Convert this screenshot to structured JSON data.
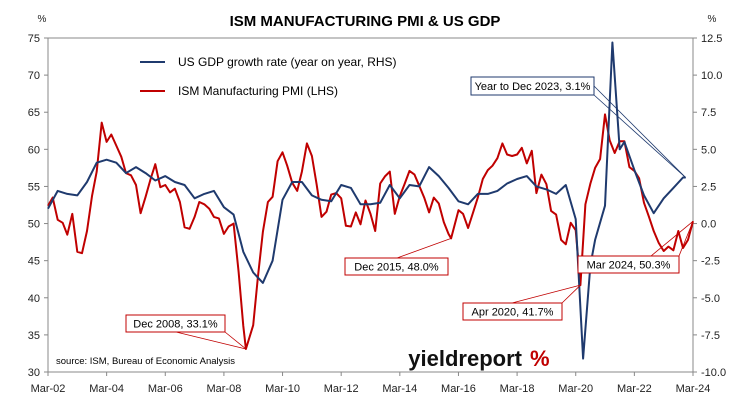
{
  "chart_data": {
    "type": "line",
    "title": "ISM MANUFACTURING PMI & US GDP",
    "left_axis_unit": "%",
    "right_axis_unit": "%",
    "left_ylim": [
      30,
      75
    ],
    "right_ylim": [
      -10,
      12.5
    ],
    "left_ticks": [
      "30",
      "35",
      "40",
      "45",
      "50",
      "55",
      "60",
      "65",
      "70",
      "75"
    ],
    "right_ticks": [
      "-10.0",
      "-7.5",
      "-5.0",
      "-2.5",
      "0.0",
      "2.5",
      "5.0",
      "7.5",
      "10.0",
      "12.5"
    ],
    "x_tick_labels": [
      "Mar-02",
      "Mar-04",
      "Mar-06",
      "Mar-08",
      "Mar-10",
      "Mar-12",
      "Mar-14",
      "Mar-16",
      "Mar-18",
      "Mar-20",
      "Mar-22",
      "Mar-24"
    ],
    "xlim": [
      2002.17,
      2024.17
    ],
    "grid": false,
    "legend_position": "top-left",
    "series": [
      {
        "name": "US GDP growth rate (year on year, RHS)",
        "axis": "right",
        "color": "#1f3a6e",
        "points": [
          [
            2002.17,
            1.0
          ],
          [
            2002.5,
            2.2
          ],
          [
            2002.83,
            2.0
          ],
          [
            2003.17,
            1.9
          ],
          [
            2003.5,
            2.8
          ],
          [
            2003.83,
            4.1
          ],
          [
            2004.17,
            4.3
          ],
          [
            2004.5,
            4.1
          ],
          [
            2004.83,
            3.4
          ],
          [
            2005.17,
            3.8
          ],
          [
            2005.5,
            3.4
          ],
          [
            2005.83,
            2.9
          ],
          [
            2006.17,
            3.2
          ],
          [
            2006.5,
            2.8
          ],
          [
            2006.83,
            2.6
          ],
          [
            2007.17,
            1.7
          ],
          [
            2007.5,
            2.0
          ],
          [
            2007.83,
            2.2
          ],
          [
            2008.17,
            1.1
          ],
          [
            2008.5,
            0.6
          ],
          [
            2008.83,
            -1.9
          ],
          [
            2009.17,
            -3.3
          ],
          [
            2009.5,
            -4.0
          ],
          [
            2009.83,
            -2.5
          ],
          [
            2010.17,
            1.6
          ],
          [
            2010.5,
            2.8
          ],
          [
            2010.83,
            2.8
          ],
          [
            2011.17,
            1.9
          ],
          [
            2011.5,
            1.6
          ],
          [
            2011.83,
            1.5
          ],
          [
            2012.17,
            2.6
          ],
          [
            2012.5,
            2.4
          ],
          [
            2012.83,
            1.3
          ],
          [
            2013.17,
            1.3
          ],
          [
            2013.5,
            1.4
          ],
          [
            2013.83,
            2.6
          ],
          [
            2014.17,
            1.7
          ],
          [
            2014.5,
            2.6
          ],
          [
            2014.83,
            2.5
          ],
          [
            2015.17,
            3.8
          ],
          [
            2015.5,
            3.2
          ],
          [
            2015.83,
            2.4
          ],
          [
            2016.17,
            1.5
          ],
          [
            2016.5,
            1.3
          ],
          [
            2016.83,
            2.0
          ],
          [
            2017.17,
            2.0
          ],
          [
            2017.5,
            2.2
          ],
          [
            2017.83,
            2.7
          ],
          [
            2018.17,
            3.0
          ],
          [
            2018.5,
            3.2
          ],
          [
            2018.83,
            2.5
          ],
          [
            2019.17,
            2.3
          ],
          [
            2019.5,
            2.0
          ],
          [
            2019.83,
            2.6
          ],
          [
            2020.17,
            0.3
          ],
          [
            2020.42,
            -9.1
          ],
          [
            2020.67,
            -2.8
          ],
          [
            2020.83,
            -1.1
          ],
          [
            2021.17,
            1.2
          ],
          [
            2021.42,
            12.2
          ],
          [
            2021.67,
            5.0
          ],
          [
            2021.83,
            5.5
          ],
          [
            2022.17,
            3.6
          ],
          [
            2022.5,
            1.9
          ],
          [
            2022.83,
            0.7
          ],
          [
            2023.17,
            1.7
          ],
          [
            2023.5,
            2.4
          ],
          [
            2023.83,
            3.1
          ],
          [
            2023.92,
            3.1
          ]
        ]
      },
      {
        "name": "ISM Manufacturing PMI (LHS)",
        "axis": "left",
        "color": "#c00000",
        "points": [
          [
            2002.17,
            52.4
          ],
          [
            2002.33,
            53.5
          ],
          [
            2002.5,
            50.5
          ],
          [
            2002.67,
            50.1
          ],
          [
            2002.83,
            48.5
          ],
          [
            2003.0,
            51.3
          ],
          [
            2003.17,
            46.2
          ],
          [
            2003.33,
            46.0
          ],
          [
            2003.5,
            49.0
          ],
          [
            2003.67,
            53.7
          ],
          [
            2003.83,
            57.0
          ],
          [
            2004.0,
            63.6
          ],
          [
            2004.17,
            61.0
          ],
          [
            2004.33,
            62.0
          ],
          [
            2004.5,
            60.5
          ],
          [
            2004.67,
            59.0
          ],
          [
            2004.83,
            56.8
          ],
          [
            2005.0,
            56.5
          ],
          [
            2005.17,
            55.2
          ],
          [
            2005.33,
            51.4
          ],
          [
            2005.5,
            53.6
          ],
          [
            2005.67,
            56.0
          ],
          [
            2005.83,
            58.0
          ],
          [
            2006.0,
            54.9
          ],
          [
            2006.17,
            55.2
          ],
          [
            2006.33,
            54.2
          ],
          [
            2006.5,
            54.7
          ],
          [
            2006.67,
            52.9
          ],
          [
            2006.83,
            49.5
          ],
          [
            2007.0,
            49.3
          ],
          [
            2007.17,
            50.9
          ],
          [
            2007.33,
            52.9
          ],
          [
            2007.5,
            52.6
          ],
          [
            2007.67,
            52.0
          ],
          [
            2007.83,
            50.9
          ],
          [
            2008.0,
            50.7
          ],
          [
            2008.17,
            48.6
          ],
          [
            2008.33,
            49.6
          ],
          [
            2008.5,
            50.0
          ],
          [
            2008.67,
            43.5
          ],
          [
            2008.83,
            36.2
          ],
          [
            2008.92,
            33.1
          ],
          [
            2009.17,
            36.3
          ],
          [
            2009.33,
            42.8
          ],
          [
            2009.5,
            48.9
          ],
          [
            2009.67,
            52.9
          ],
          [
            2009.83,
            53.6
          ],
          [
            2010.0,
            58.4
          ],
          [
            2010.17,
            59.6
          ],
          [
            2010.33,
            57.8
          ],
          [
            2010.5,
            55.5
          ],
          [
            2010.67,
            54.4
          ],
          [
            2010.83,
            57.0
          ],
          [
            2011.0,
            60.8
          ],
          [
            2011.17,
            59.1
          ],
          [
            2011.33,
            55.3
          ],
          [
            2011.5,
            50.9
          ],
          [
            2011.67,
            51.6
          ],
          [
            2011.83,
            53.9
          ],
          [
            2012.0,
            54.1
          ],
          [
            2012.17,
            53.4
          ],
          [
            2012.33,
            49.7
          ],
          [
            2012.5,
            49.6
          ],
          [
            2012.67,
            51.5
          ],
          [
            2012.83,
            49.9
          ],
          [
            2013.0,
            53.1
          ],
          [
            2013.17,
            51.3
          ],
          [
            2013.33,
            49.0
          ],
          [
            2013.5,
            55.4
          ],
          [
            2013.67,
            56.4
          ],
          [
            2013.83,
            57.0
          ],
          [
            2014.0,
            51.3
          ],
          [
            2014.17,
            53.7
          ],
          [
            2014.33,
            55.3
          ],
          [
            2014.5,
            57.1
          ],
          [
            2014.67,
            56.6
          ],
          [
            2014.83,
            55.1
          ],
          [
            2015.0,
            53.5
          ],
          [
            2015.17,
            51.5
          ],
          [
            2015.33,
            53.5
          ],
          [
            2015.5,
            52.7
          ],
          [
            2015.67,
            50.2
          ],
          [
            2015.83,
            48.6
          ],
          [
            2015.92,
            48.0
          ],
          [
            2016.17,
            51.8
          ],
          [
            2016.33,
            51.3
          ],
          [
            2016.5,
            49.4
          ],
          [
            2016.67,
            51.5
          ],
          [
            2016.83,
            53.5
          ],
          [
            2017.0,
            56.0
          ],
          [
            2017.17,
            57.2
          ],
          [
            2017.33,
            57.8
          ],
          [
            2017.5,
            58.8
          ],
          [
            2017.67,
            60.8
          ],
          [
            2017.83,
            59.3
          ],
          [
            2018.0,
            59.1
          ],
          [
            2018.17,
            59.3
          ],
          [
            2018.33,
            60.2
          ],
          [
            2018.5,
            58.1
          ],
          [
            2018.67,
            59.8
          ],
          [
            2018.83,
            54.1
          ],
          [
            2019.0,
            56.6
          ],
          [
            2019.17,
            55.3
          ],
          [
            2019.33,
            51.7
          ],
          [
            2019.5,
            51.2
          ],
          [
            2019.67,
            47.8
          ],
          [
            2019.83,
            47.2
          ],
          [
            2020.0,
            50.1
          ],
          [
            2020.17,
            49.1
          ],
          [
            2020.33,
            41.7
          ],
          [
            2020.5,
            52.6
          ],
          [
            2020.67,
            55.4
          ],
          [
            2020.83,
            57.5
          ],
          [
            2021.0,
            58.7
          ],
          [
            2021.17,
            64.7
          ],
          [
            2021.33,
            61.2
          ],
          [
            2021.5,
            59.5
          ],
          [
            2021.67,
            61.1
          ],
          [
            2021.83,
            61.1
          ],
          [
            2022.0,
            57.6
          ],
          [
            2022.17,
            57.1
          ],
          [
            2022.33,
            56.1
          ],
          [
            2022.5,
            52.8
          ],
          [
            2022.67,
            50.9
          ],
          [
            2022.83,
            49.0
          ],
          [
            2023.0,
            47.4
          ],
          [
            2023.17,
            46.3
          ],
          [
            2023.33,
            46.9
          ],
          [
            2023.5,
            46.4
          ],
          [
            2023.67,
            49.0
          ],
          [
            2023.83,
            46.7
          ],
          [
            2024.0,
            47.8
          ],
          [
            2024.17,
            50.3
          ]
        ]
      }
    ],
    "annotations": [
      {
        "text": "Year to Dec 2023, 3.1%",
        "color": "#1f3a6e"
      },
      {
        "text": "Dec 2015, 48.0%",
        "color": "#c00000"
      },
      {
        "text": "Dec 2008, 33.1%",
        "color": "#c00000"
      },
      {
        "text": "Apr 2020, 41.7%",
        "color": "#c00000"
      },
      {
        "text": "Mar 2024, 50.3%",
        "color": "#c00000"
      }
    ],
    "source": "source: ISM, Bureau of Economic Analysis"
  },
  "logo": {
    "text": "yieldreport",
    "symbol": "%"
  }
}
